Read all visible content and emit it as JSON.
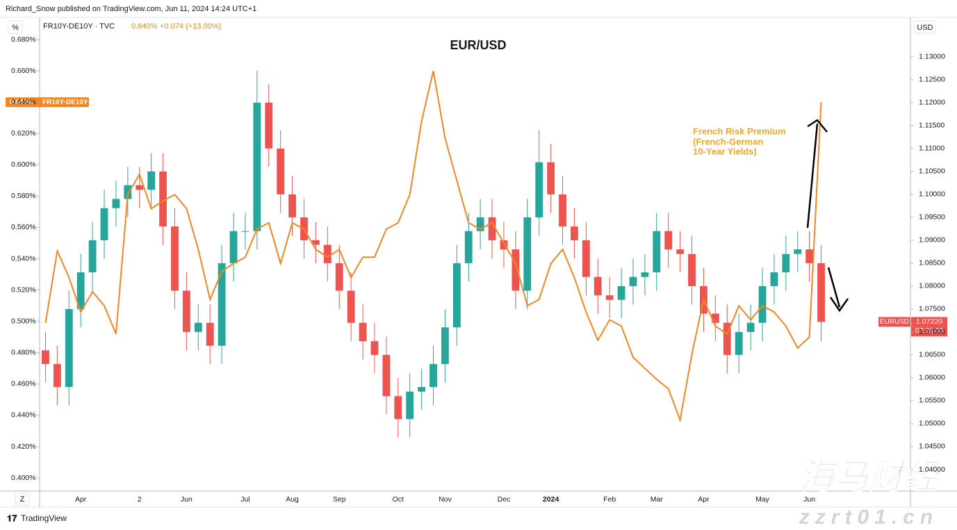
{
  "header": {
    "publisher": "Richard_Snow published on TradingView.com, Jun 11, 2024 14:24 UTC+1",
    "left_unit": "%",
    "right_unit": "USD"
  },
  "chart_data": {
    "type": "candlestick",
    "title": "EUR/USD",
    "legend_source": "FR10Y-DE10Y · TVC",
    "legend_value": "0.640%",
    "legend_change": "+0.074 (+13.00%)",
    "annotation": [
      "French Risk Premium",
      "(French-German",
      "10-Year Yields)"
    ],
    "categories": [
      null,
      null,
      null,
      "Apr",
      null,
      null,
      null,
      null,
      "2",
      null,
      null,
      null,
      "Jun",
      null,
      null,
      null,
      null,
      "Jul",
      null,
      null,
      null,
      "Aug",
      null,
      null,
      null,
      "Sep",
      null,
      null,
      null,
      null,
      "Oct",
      null,
      null,
      null,
      "Nov",
      null,
      null,
      null,
      null,
      "Dec",
      null,
      null,
      null,
      "2024",
      null,
      null,
      null,
      null,
      "Feb",
      null,
      null,
      null,
      "Mar",
      null,
      null,
      null,
      "Apr",
      null,
      null,
      null,
      null,
      "May",
      null,
      null,
      null,
      "Jun",
      null
    ],
    "series": [
      {
        "name": "EURUSD",
        "type": "candlestick",
        "axis": "y2",
        "up_color": "#26a69a",
        "down_color": "#ef5350",
        "last_label": "1.07220",
        "countdown": "07:35:09",
        "open": [
          1.066,
          1.063,
          1.058,
          1.075,
          1.083,
          1.09,
          1.097,
          1.099,
          1.102,
          1.101,
          1.105,
          1.093,
          1.079,
          1.07,
          1.072,
          1.067,
          1.085,
          1.092,
          1.092,
          1.12,
          1.11,
          1.1,
          1.095,
          1.09,
          1.089,
          1.085,
          1.079,
          1.072,
          1.068,
          1.065,
          1.056,
          1.051,
          1.057,
          1.058,
          1.063,
          1.071,
          1.085,
          1.092,
          1.095,
          1.09,
          1.088,
          1.079,
          1.095,
          1.107,
          1.1,
          1.093,
          1.09,
          1.082,
          1.078,
          1.077,
          1.08,
          1.082,
          1.083,
          1.092,
          1.088,
          1.087,
          1.08,
          1.074,
          1.072,
          1.065,
          1.07,
          1.072,
          1.08,
          1.083,
          1.087,
          1.088,
          1.085
        ],
        "high": [
          1.07,
          1.067,
          1.079,
          1.087,
          1.094,
          1.101,
          1.103,
          1.106,
          1.106,
          1.109,
          1.109,
          1.097,
          1.083,
          1.076,
          1.076,
          1.089,
          1.096,
          1.096,
          1.127,
          1.124,
          1.114,
          1.104,
          1.099,
          1.094,
          1.093,
          1.089,
          1.083,
          1.076,
          1.072,
          1.069,
          1.06,
          1.061,
          1.062,
          1.067,
          1.075,
          1.089,
          1.096,
          1.099,
          1.099,
          1.094,
          1.092,
          1.099,
          1.114,
          1.111,
          1.104,
          1.097,
          1.094,
          1.086,
          1.082,
          1.084,
          1.086,
          1.087,
          1.096,
          1.096,
          1.092,
          1.091,
          1.084,
          1.078,
          1.076,
          1.074,
          1.076,
          1.084,
          1.087,
          1.091,
          1.092,
          1.092,
          1.089
        ],
        "low": [
          1.059,
          1.054,
          1.054,
          1.071,
          1.079,
          1.086,
          1.093,
          1.095,
          1.097,
          1.097,
          1.089,
          1.075,
          1.066,
          1.066,
          1.063,
          1.063,
          1.081,
          1.088,
          1.088,
          1.106,
          1.096,
          1.091,
          1.086,
          1.085,
          1.081,
          1.075,
          1.068,
          1.064,
          1.061,
          1.052,
          1.047,
          1.047,
          1.053,
          1.054,
          1.059,
          1.067,
          1.081,
          1.088,
          1.086,
          1.084,
          1.075,
          1.075,
          1.091,
          1.096,
          1.089,
          1.086,
          1.078,
          1.074,
          1.073,
          1.073,
          1.076,
          1.078,
          1.079,
          1.084,
          1.083,
          1.076,
          1.07,
          1.068,
          1.061,
          1.061,
          1.066,
          1.068,
          1.076,
          1.079,
          1.083,
          1.081,
          1.068
        ],
        "close": [
          1.063,
          1.058,
          1.075,
          1.083,
          1.09,
          1.097,
          1.099,
          1.102,
          1.101,
          1.105,
          1.093,
          1.079,
          1.07,
          1.072,
          1.067,
          1.085,
          1.092,
          1.092,
          1.12,
          1.11,
          1.1,
          1.095,
          1.09,
          1.089,
          1.085,
          1.079,
          1.072,
          1.068,
          1.065,
          1.056,
          1.051,
          1.057,
          1.058,
          1.063,
          1.071,
          1.085,
          1.092,
          1.095,
          1.09,
          1.088,
          1.079,
          1.095,
          1.107,
          1.1,
          1.093,
          1.09,
          1.082,
          1.078,
          1.077,
          1.08,
          1.082,
          1.083,
          1.092,
          1.088,
          1.087,
          1.08,
          1.074,
          1.072,
          1.065,
          1.07,
          1.072,
          1.08,
          1.083,
          1.087,
          1.088,
          1.085,
          1.0722
        ]
      },
      {
        "name": "FR10Y-DE10Y",
        "type": "line",
        "axis": "y",
        "color": "#f5861f",
        "last_label": "0.640%",
        "values": [
          0.499,
          0.545,
          0.528,
          0.506,
          0.519,
          0.51,
          0.492,
          0.581,
          0.594,
          0.572,
          0.577,
          0.581,
          0.572,
          0.546,
          0.514,
          0.532,
          0.537,
          0.541,
          0.559,
          0.563,
          0.537,
          0.563,
          0.559,
          0.546,
          0.541,
          0.546,
          0.528,
          0.541,
          0.541,
          0.559,
          0.563,
          0.581,
          0.628,
          0.66,
          0.617,
          0.59,
          0.563,
          0.559,
          0.563,
          0.55,
          0.537,
          0.51,
          0.514,
          0.537,
          0.546,
          0.528,
          0.506,
          0.488,
          0.501,
          0.497,
          0.477,
          0.47,
          0.463,
          0.457,
          0.437,
          0.479,
          0.514,
          0.497,
          0.492,
          0.51,
          0.501,
          0.51,
          0.506,
          0.497,
          0.483,
          0.49,
          0.64
        ]
      }
    ],
    "ylim": [
      0.3916,
      0.6942
    ],
    "yticks": [
      {
        "value": 0.4,
        "label": "0.400%"
      },
      {
        "value": 0.42,
        "label": "0.420%"
      },
      {
        "value": 0.44,
        "label": "0.440%"
      },
      {
        "value": 0.46,
        "label": "0.460%"
      },
      {
        "value": 0.48,
        "label": "0.480%"
      },
      {
        "value": 0.5,
        "label": "0.500%"
      },
      {
        "value": 0.52,
        "label": "0.520%"
      },
      {
        "value": 0.54,
        "label": "0.540%"
      },
      {
        "value": 0.56,
        "label": "0.560%"
      },
      {
        "value": 0.58,
        "label": "0.580%"
      },
      {
        "value": 0.6,
        "label": "0.600%"
      },
      {
        "value": 0.62,
        "label": "0.620%"
      },
      {
        "value": 0.64,
        "label": "0.640%"
      },
      {
        "value": 0.66,
        "label": "0.660%"
      },
      {
        "value": 0.68,
        "label": "0.680%"
      }
    ],
    "y2lim": [
      1.0353,
      1.1386
    ],
    "y2ticks": [
      {
        "value": 1.04,
        "label": "1.04000"
      },
      {
        "value": 1.045,
        "label": "1.04500"
      },
      {
        "value": 1.05,
        "label": "1.05000"
      },
      {
        "value": 1.055,
        "label": "1.05500"
      },
      {
        "value": 1.06,
        "label": "1.06000"
      },
      {
        "value": 1.065,
        "label": "1.06500"
      },
      {
        "value": 1.07,
        "label": "1.07000"
      },
      {
        "value": 1.075,
        "label": "1.07500"
      },
      {
        "value": 1.08,
        "label": "1.08000"
      },
      {
        "value": 1.085,
        "label": "1.08500"
      },
      {
        "value": 1.09,
        "label": "1.09000"
      },
      {
        "value": 1.095,
        "label": "1.09500"
      },
      {
        "value": 1.1,
        "label": "1.10000"
      },
      {
        "value": 1.105,
        "label": "1.10500"
      },
      {
        "value": 1.11,
        "label": "1.11000"
      },
      {
        "value": 1.115,
        "label": "1.11500"
      },
      {
        "value": 1.12,
        "label": "1.12000"
      },
      {
        "value": 1.125,
        "label": "1.12500"
      },
      {
        "value": 1.13,
        "label": "1.13000"
      }
    ],
    "grid": false
  },
  "footer": {
    "zoom": "Z",
    "brand": "TradingView"
  },
  "watermark": {
    "name": "海马财经",
    "site": "zzrt01.cn"
  }
}
